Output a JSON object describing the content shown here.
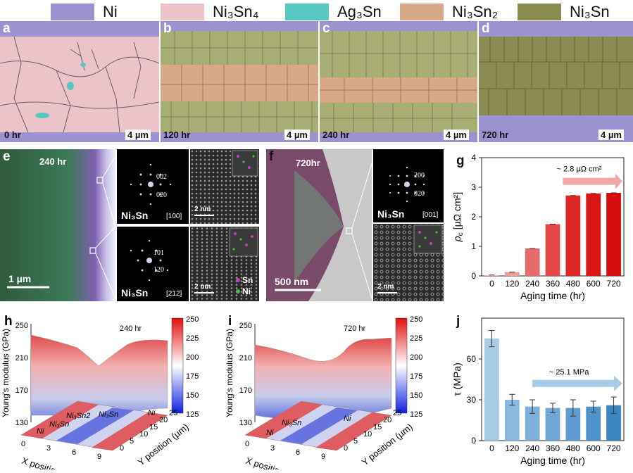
{
  "legend": [
    {
      "label": "Ni",
      "color": "#9b93cf"
    },
    {
      "label": "Ni₃Sn₄",
      "color": "#ecc3c8"
    },
    {
      "label": "Ag₃Sn",
      "color": "#58c7c4"
    },
    {
      "label": "Ni₃Sn₂",
      "color": "#d9a888"
    },
    {
      "label": "Ni₃Sn",
      "color": "#8c8c52"
    }
  ],
  "micro": [
    {
      "letter": "a",
      "time": "0 hr",
      "scale": "4 µm"
    },
    {
      "letter": "b",
      "time": "120 hr",
      "scale": "4 µm"
    },
    {
      "letter": "c",
      "time": "240 hr",
      "scale": "4 µm"
    },
    {
      "letter": "d",
      "time": "720 hr",
      "scale": "4 µm"
    }
  ],
  "panel_e": {
    "letter": "e",
    "time": "240 hr",
    "scale": "1 µm",
    "insets": [
      {
        "phase": "Ni₃Sn",
        "axis": "[100]",
        "spots": [
          "002",
          "020"
        ],
        "scale": "2 nm"
      },
      {
        "phase": "Ni₃Sn",
        "axis": "[212]",
        "spots": [
          "101",
          "120"
        ],
        "scale": "2 nm"
      }
    ],
    "atoms": [
      "Sn",
      "Ni"
    ]
  },
  "panel_f": {
    "letter": "f",
    "time": "720hr",
    "scale": "500 nm",
    "inset": {
      "phase": "Ni₃Sn",
      "axis": "[001]",
      "spots": [
        "200",
        "020"
      ],
      "scale": "2 nm"
    }
  },
  "chart_data": [
    {
      "panel": "g",
      "type": "bar",
      "categories": [
        "0",
        "120",
        "240",
        "360",
        "480",
        "600",
        "720"
      ],
      "values": [
        0.03,
        0.13,
        0.93,
        1.75,
        2.72,
        2.79,
        2.81
      ],
      "xlabel": "Aging time (hr)",
      "ylabel": "ρc (µΩ cm²)",
      "ylabel_main": "ρ",
      "ylabel_sub": "c",
      "ylabel_unit": "[µΩ cm²]",
      "ylim": [
        0,
        4
      ],
      "yticks": [
        "0",
        "1",
        "2",
        "3",
        "4"
      ],
      "annotation": "~ 2.8 µΩ cm²",
      "colors": [
        "#f4bcbc",
        "#ee9a9a",
        "#e86b6b",
        "#e34646",
        "#de2626",
        "#da1515",
        "#d60d0d"
      ]
    },
    {
      "panel": "h",
      "type": "area",
      "time": "240 hr",
      "zlabel": "Young's modulus (GPa)",
      "xlabel": "X position (µm)",
      "ylabel": "Y position (µm)",
      "zticks": [
        "130",
        "170",
        "210",
        "250"
      ],
      "xticks": [
        "0",
        "3",
        "6",
        "9"
      ],
      "yticks": [
        "0",
        "5",
        "10",
        "15",
        "20",
        "25"
      ],
      "colorbar": [
        "250",
        "225",
        "200",
        "175",
        "150",
        "125"
      ],
      "regions": [
        "Ni",
        "Ni₃Sn",
        "Ni₃Sn2",
        "Ni₃Sn",
        "Ni"
      ]
    },
    {
      "panel": "i",
      "type": "area",
      "time": "720 hr",
      "zlabel": "Young's modulus (GPa)",
      "xlabel": "X position (µm)",
      "ylabel": "Y position (µm)",
      "zticks": [
        "130",
        "170",
        "210",
        "250"
      ],
      "xticks": [
        "0",
        "3",
        "6",
        "9"
      ],
      "yticks": [
        "0",
        "5",
        "10",
        "15",
        "20",
        "25"
      ],
      "colorbar": [
        "250",
        "225",
        "200",
        "175",
        "150",
        "125"
      ],
      "regions": [
        "Ni",
        "Ni₃Sn",
        "Ni"
      ]
    },
    {
      "panel": "j",
      "type": "bar",
      "categories": [
        "0",
        "120",
        "240",
        "360",
        "480",
        "600",
        "720"
      ],
      "values": [
        75,
        30,
        25,
        24,
        24,
        25,
        26
      ],
      "errors": [
        6,
        4,
        5,
        3.5,
        6,
        4,
        6
      ],
      "xlabel": "Aging time (hr)",
      "ylabel": "τ (MPa)",
      "ylim": [
        0,
        90
      ],
      "yticks": [
        "0",
        "30",
        "60"
      ],
      "annotation": "~ 25.1 MPa",
      "colors": [
        "#a8cbe6",
        "#8cb9df",
        "#7eb0da",
        "#6ea7d6",
        "#5f9dd1",
        "#4f92cb",
        "#3d86c4"
      ]
    }
  ]
}
